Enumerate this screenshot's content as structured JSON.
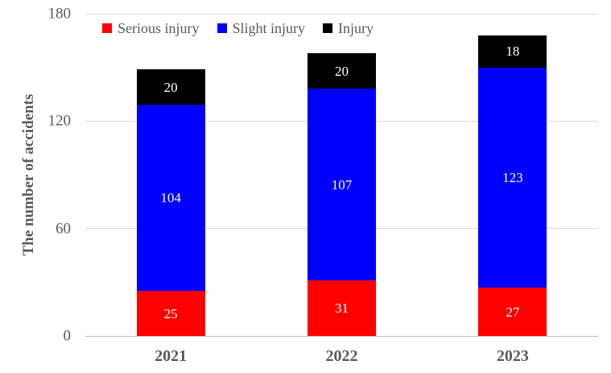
{
  "chart_data": {
    "type": "bar",
    "stacked": true,
    "title": "",
    "xlabel": "",
    "ylabel": "The number of accidents",
    "categories": [
      "2021",
      "2022",
      "2023"
    ],
    "series": [
      {
        "name": "Serious injury",
        "color": "#ff0000",
        "values": [
          25,
          31,
          27
        ]
      },
      {
        "name": "Slight injury",
        "color": "#0000ff",
        "values": [
          104,
          107,
          123
        ]
      },
      {
        "name": "Injury",
        "color": "#000000",
        "values": [
          20,
          20,
          18
        ]
      }
    ],
    "totals": [
      149,
      158,
      168
    ],
    "ylim": [
      0,
      180
    ],
    "yticks": [
      0,
      60,
      120,
      180
    ],
    "grid": true,
    "legend_position": "top",
    "data_label_color": "#ffffff",
    "axis_text_color": "#595959",
    "gridline_color": "#d9d9d9"
  }
}
